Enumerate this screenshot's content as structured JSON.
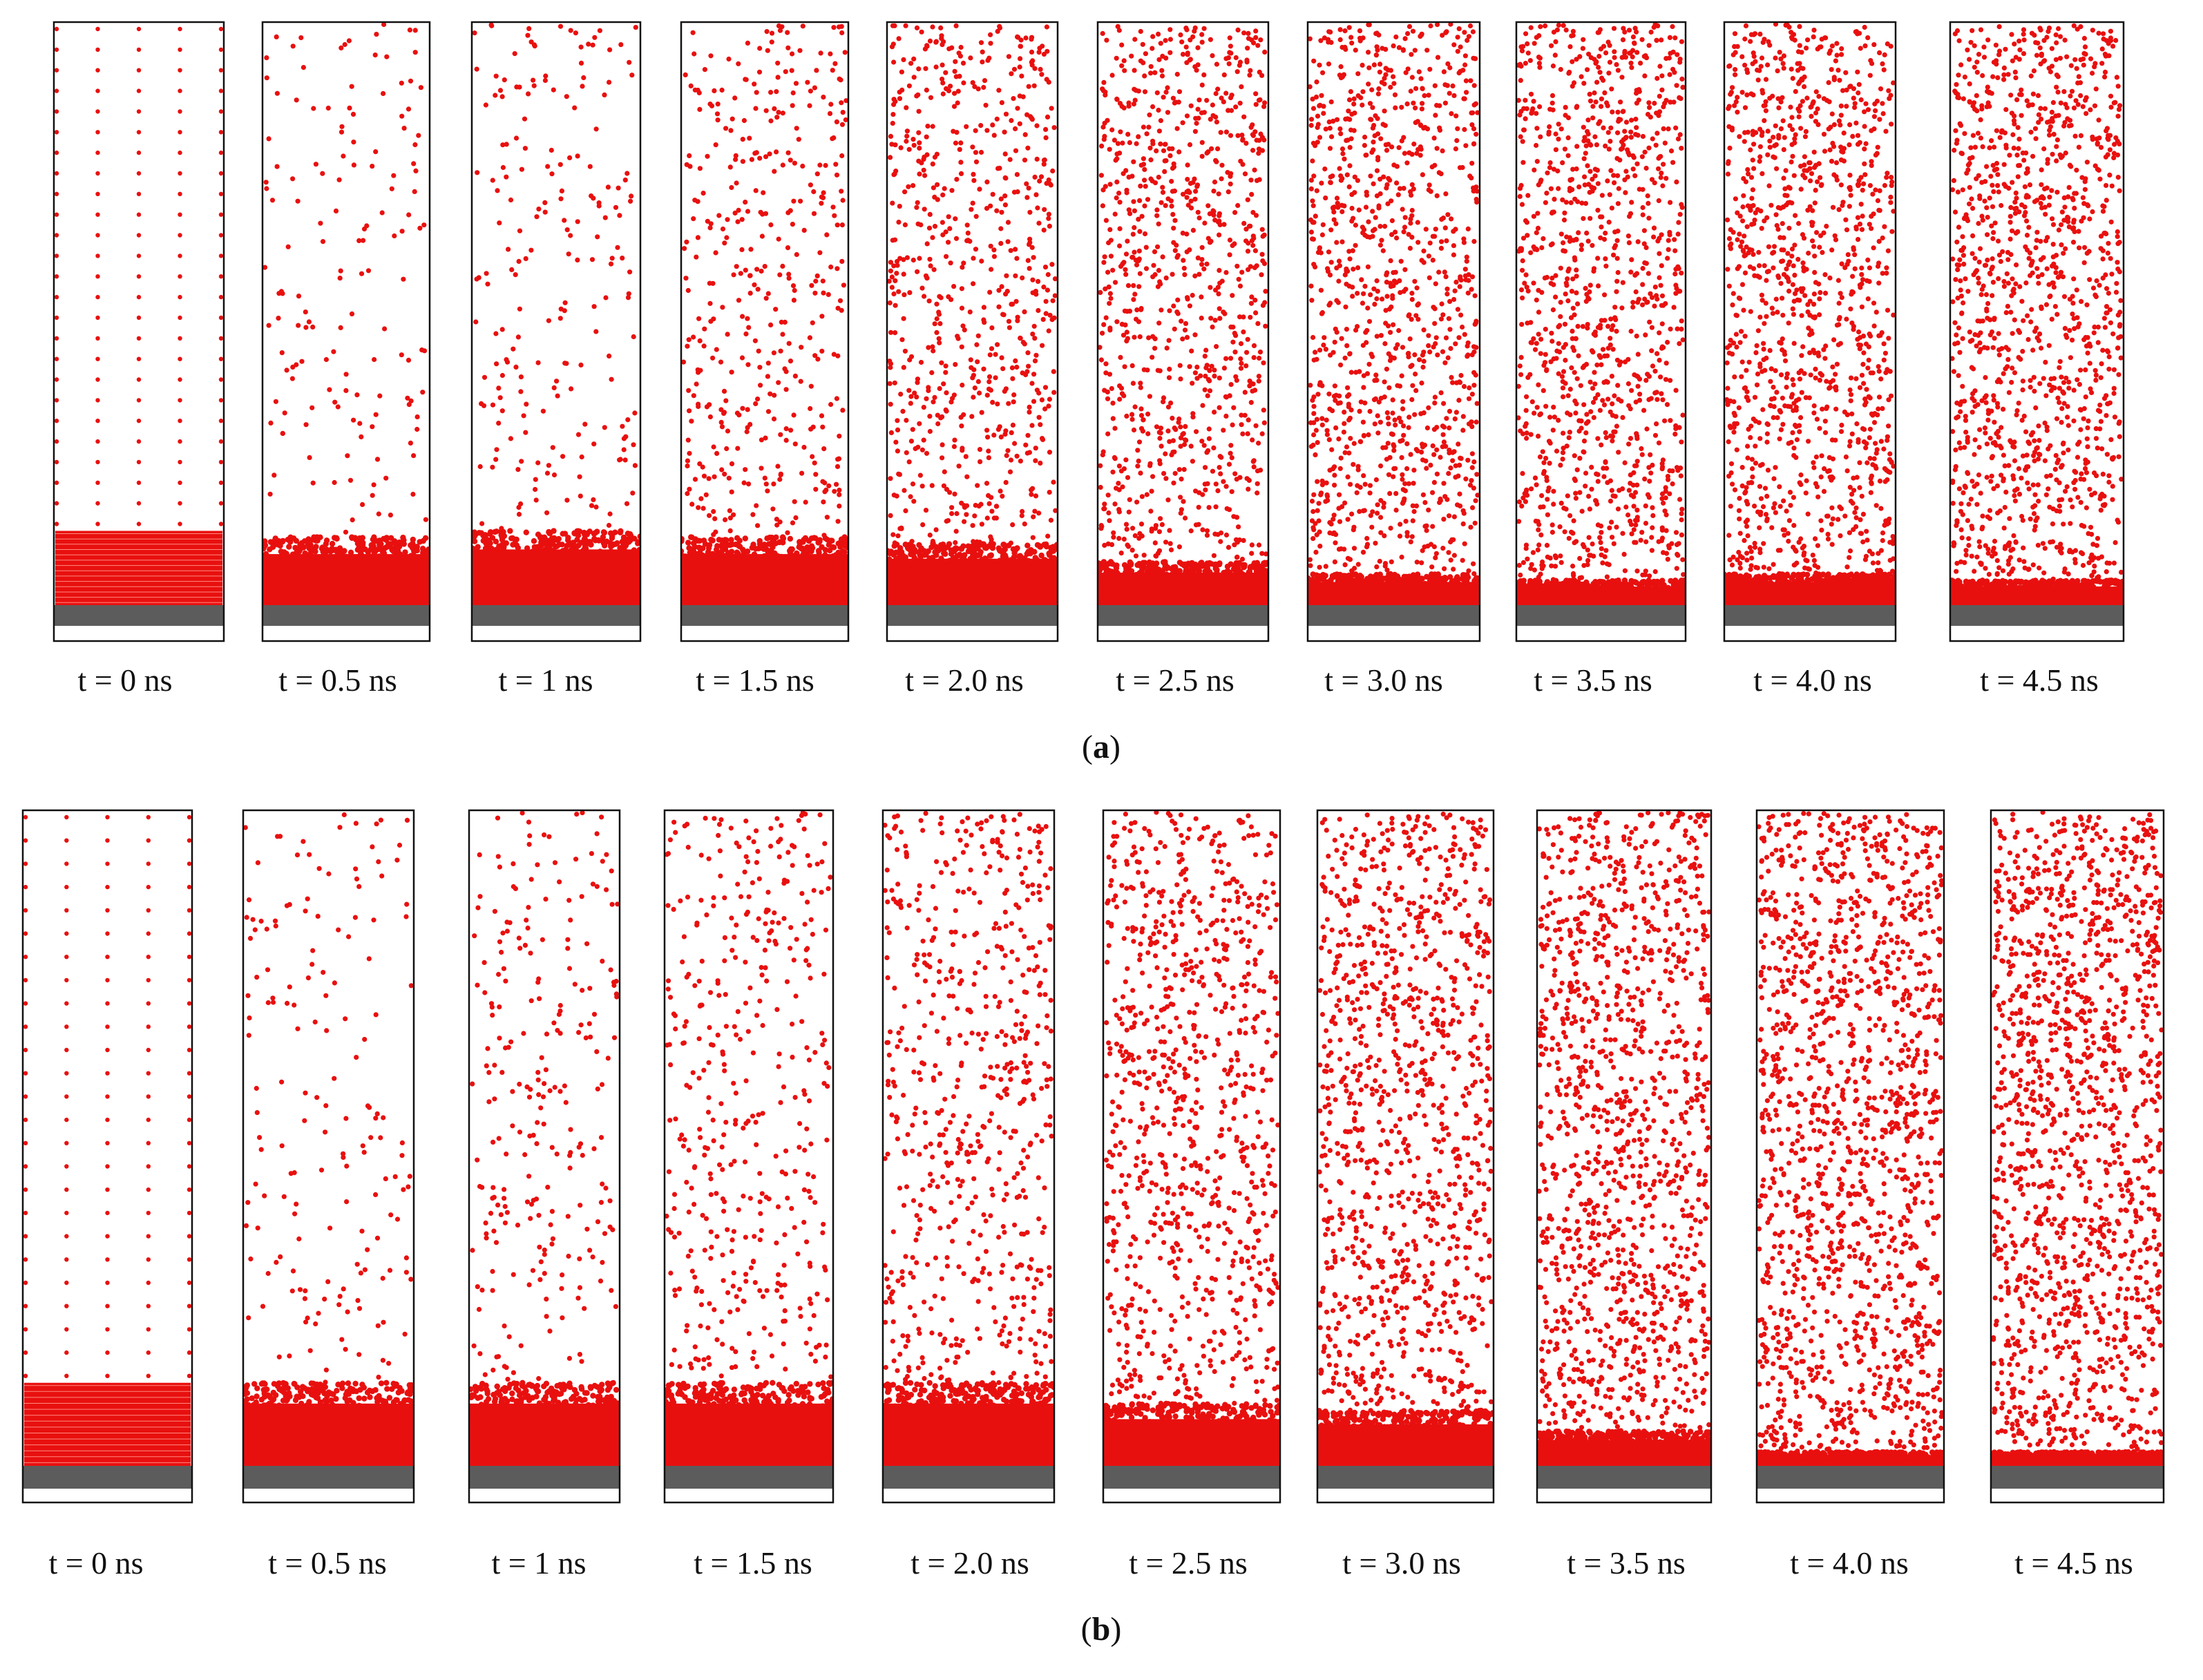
{
  "figure": {
    "colors": {
      "atom": "#e8100f",
      "substrate": "#5c5c5c",
      "frame": "#111111",
      "background": "#ffffff"
    },
    "panels": [
      {
        "label_open": "(",
        "label_letter": "a",
        "label_close": ")",
        "snapshots": [
          {
            "time_label": "t = 0 ns",
            "state": "initial"
          },
          {
            "time_label": "t = 0.5 ns",
            "film_frac": 0.11,
            "vapor_density": 0.18
          },
          {
            "time_label": "t = 1 ns",
            "film_frac": 0.12,
            "vapor_density": 0.25
          },
          {
            "time_label": "t = 1.5 ns",
            "film_frac": 0.11,
            "vapor_density": 0.5
          },
          {
            "time_label": "t = 2.0 ns",
            "film_frac": 0.1,
            "vapor_density": 0.8
          },
          {
            "time_label": "t = 2.5 ns",
            "film_frac": 0.07,
            "vapor_density": 1.0
          },
          {
            "time_label": "t = 3.0 ns",
            "film_frac": 0.05,
            "vapor_density": 1.15
          },
          {
            "time_label": "t = 3.5 ns",
            "film_frac": 0.04,
            "vapor_density": 1.2
          },
          {
            "time_label": "t = 4.0 ns",
            "film_frac": 0.05,
            "vapor_density": 1.25
          },
          {
            "time_label": "t = 4.5 ns",
            "film_frac": 0.04,
            "vapor_density": 1.3
          }
        ]
      },
      {
        "label_open": "(",
        "label_letter": "b",
        "label_close": ")",
        "snapshots": [
          {
            "time_label": "t = 0 ns",
            "state": "initial"
          },
          {
            "time_label": "t = 0.5 ns",
            "film_frac": 0.12,
            "vapor_density": 0.18
          },
          {
            "time_label": "t = 1 ns",
            "film_frac": 0.12,
            "vapor_density": 0.3
          },
          {
            "time_label": "t = 1.5 ns",
            "film_frac": 0.12,
            "vapor_density": 0.45
          },
          {
            "time_label": "t = 2.0 ns",
            "film_frac": 0.12,
            "vapor_density": 0.65
          },
          {
            "time_label": "t = 2.5 ns",
            "film_frac": 0.09,
            "vapor_density": 0.9
          },
          {
            "time_label": "t = 3.0 ns",
            "film_frac": 0.08,
            "vapor_density": 1.05
          },
          {
            "time_label": "t = 3.5 ns",
            "film_frac": 0.05,
            "vapor_density": 1.2
          },
          {
            "time_label": "t = 4.0 ns",
            "film_frac": 0.02,
            "vapor_density": 1.3
          },
          {
            "time_label": "t = 4.5 ns",
            "film_frac": 0.02,
            "vapor_density": 1.35
          }
        ]
      }
    ]
  }
}
